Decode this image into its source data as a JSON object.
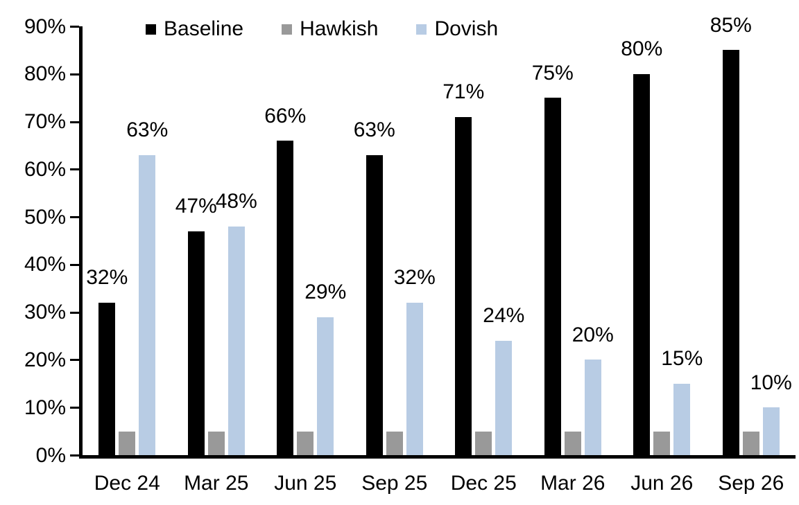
{
  "chart_data": {
    "type": "bar",
    "title": "",
    "xlabel": "",
    "ylabel": "",
    "categories": [
      "Dec 24",
      "Mar 25",
      "Jun 25",
      "Sep 25",
      "Dec 25",
      "Mar 26",
      "Jun 26",
      "Sep 26"
    ],
    "series": [
      {
        "name": "Baseline",
        "color": "#000000",
        "values": [
          32,
          47,
          66,
          63,
          71,
          75,
          80,
          85
        ],
        "labels": [
          "32%",
          "47%",
          "66%",
          "63%",
          "71%",
          "75%",
          "80%",
          "85%"
        ],
        "show_labels": true
      },
      {
        "name": "Hawkish",
        "color": "#999999",
        "values": [
          5,
          5,
          5,
          5,
          5,
          5,
          5,
          5
        ],
        "labels": [],
        "show_labels": false
      },
      {
        "name": "Dovish",
        "color": "#B8CCE4",
        "values": [
          63,
          48,
          29,
          32,
          24,
          20,
          15,
          10
        ],
        "labels": [
          "63%",
          "48%",
          "29%",
          "32%",
          "24%",
          "20%",
          "15%",
          "10%"
        ],
        "show_labels": true
      }
    ],
    "y_axis": {
      "min": 0,
      "max": 90,
      "step": 10,
      "tick_labels": [
        "0%",
        "10%",
        "20%",
        "30%",
        "40%",
        "50%",
        "60%",
        "70%",
        "80%",
        "90%"
      ]
    },
    "legend": {
      "position": "top",
      "entries": [
        "Baseline",
        "Hawkish",
        "Dovish"
      ]
    },
    "grid": false,
    "axis_color": "#000000"
  }
}
